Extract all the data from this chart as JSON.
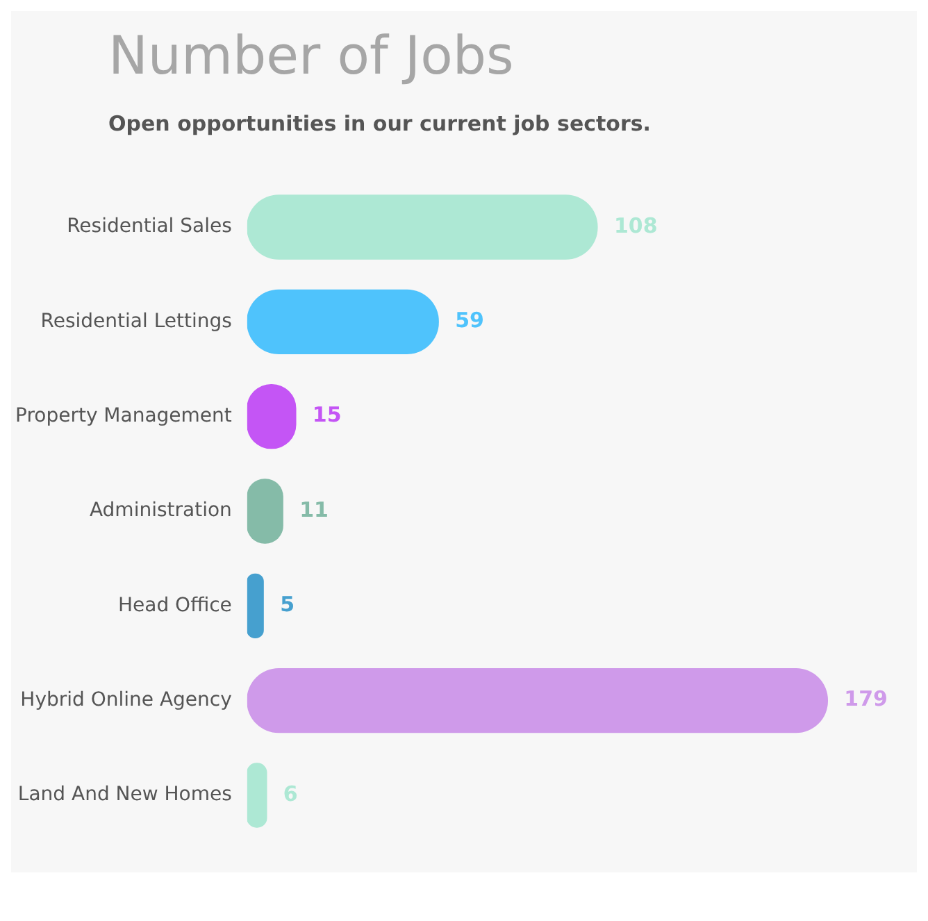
{
  "chart_data": {
    "type": "bar",
    "orientation": "horizontal",
    "title": "Number of Jobs",
    "subtitle": "Open opportunities in our current job sectors.",
    "categories": [
      "Residential Sales",
      "Residential Lettings",
      "Property Management",
      "Administration",
      "Head Office",
      "Hybrid Online Agency",
      "Land And New Homes"
    ],
    "values": [
      108,
      59,
      15,
      11,
      5,
      179,
      6
    ],
    "colors": [
      "#ade8d4",
      "#4fc3fc",
      "#c455f5",
      "#85bba8",
      "#46a0cf",
      "#cf9aea",
      "#ade8d4"
    ],
    "data_labels": true,
    "grid": false,
    "legend": false
  }
}
